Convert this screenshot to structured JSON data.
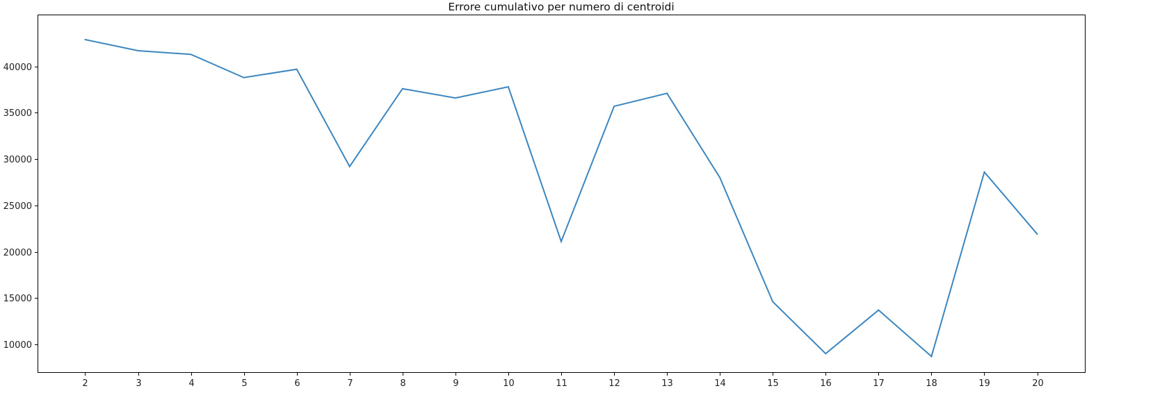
{
  "chart_data": {
    "type": "line",
    "title": "Errore cumulativo per numero di centroidi",
    "xlabel": "",
    "ylabel": "",
    "x": [
      2,
      3,
      4,
      5,
      6,
      7,
      8,
      9,
      10,
      11,
      12,
      13,
      14,
      15,
      16,
      17,
      18,
      19,
      20
    ],
    "series": [
      {
        "values": [
          42900,
          41700,
          41300,
          38800,
          39700,
          29200,
          37600,
          36600,
          37800,
          21100,
          35700,
          37100,
          28000,
          14600,
          9000,
          13700,
          8700,
          28600,
          21900
        ],
        "color": "#3b86c0"
      }
    ],
    "xticks": [
      "2",
      "3",
      "4",
      "5",
      "6",
      "7",
      "8",
      "9",
      "10",
      "11",
      "12",
      "13",
      "14",
      "15",
      "16",
      "17",
      "18",
      "19",
      "20"
    ],
    "yticks": [
      "10000",
      "15000",
      "20000",
      "25000",
      "30000",
      "35000",
      "40000"
    ],
    "ytick_values": [
      10000,
      15000,
      20000,
      25000,
      30000,
      35000,
      40000
    ],
    "xlim": [
      1.1,
      20.9
    ],
    "ylim": [
      7000,
      45600
    ],
    "grid": false,
    "legend": "none"
  }
}
